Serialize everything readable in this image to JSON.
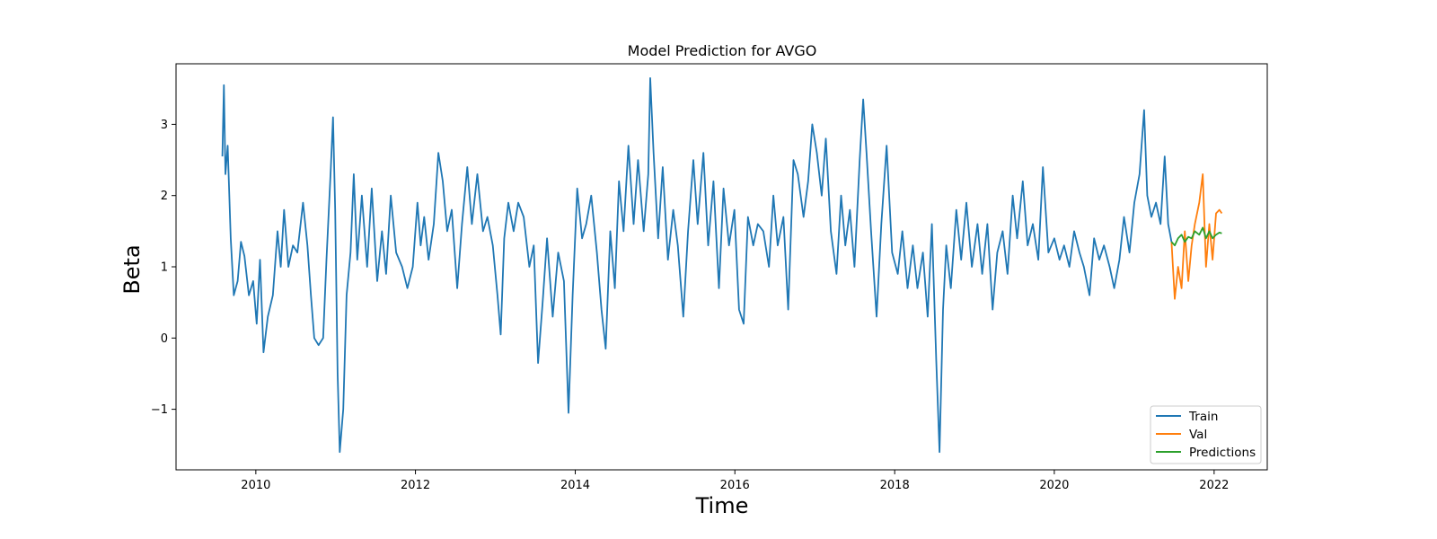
{
  "chart_data": {
    "type": "line",
    "title": "Model Prediction for AVGO",
    "xlabel": "Time",
    "ylabel": "Beta",
    "xlim": [
      "2009-01-01",
      "2022-09-01"
    ],
    "ylim": [
      -1.85,
      3.85
    ],
    "x_ticks": [
      "2010",
      "2012",
      "2014",
      "2016",
      "2018",
      "2020",
      "2022"
    ],
    "y_ticks": [
      "−1",
      "0",
      "1",
      "2",
      "3"
    ],
    "y_tick_values": [
      -1,
      0,
      1,
      2,
      3
    ],
    "grid": false,
    "legend_position": "bottom-right",
    "series": [
      {
        "name": "Train",
        "color": "#1f77b4",
        "points": [
          [
            "2009-08-01",
            2.55
          ],
          [
            "2009-08-08",
            3.55
          ],
          [
            "2009-08-15",
            2.3
          ],
          [
            "2009-08-25",
            2.7
          ],
          [
            "2009-09-08",
            1.4
          ],
          [
            "2009-09-22",
            0.6
          ],
          [
            "2009-10-10",
            0.8
          ],
          [
            "2009-10-25",
            1.35
          ],
          [
            "2009-11-10",
            1.15
          ],
          [
            "2009-11-30",
            0.6
          ],
          [
            "2009-12-20",
            0.8
          ],
          [
            "2010-01-05",
            0.2
          ],
          [
            "2010-01-20",
            1.1
          ],
          [
            "2010-02-05",
            -0.2
          ],
          [
            "2010-02-25",
            0.3
          ],
          [
            "2010-03-20",
            0.6
          ],
          [
            "2010-04-10",
            1.5
          ],
          [
            "2010-04-25",
            1.0
          ],
          [
            "2010-05-10",
            1.8
          ],
          [
            "2010-05-30",
            1.0
          ],
          [
            "2010-06-20",
            1.3
          ],
          [
            "2010-07-10",
            1.2
          ],
          [
            "2010-08-05",
            1.9
          ],
          [
            "2010-08-25",
            1.3
          ],
          [
            "2010-09-10",
            0.6
          ],
          [
            "2010-09-25",
            0.0
          ],
          [
            "2010-10-15",
            -0.1
          ],
          [
            "2010-11-05",
            0.0
          ],
          [
            "2010-11-20",
            1.1
          ],
          [
            "2010-12-10",
            2.4
          ],
          [
            "2010-12-20",
            3.1
          ],
          [
            "2010-12-30",
            1.8
          ],
          [
            "2011-01-10",
            -0.5
          ],
          [
            "2011-01-20",
            -1.6
          ],
          [
            "2011-02-05",
            -1.0
          ],
          [
            "2011-02-20",
            0.6
          ],
          [
            "2011-03-10",
            1.2
          ],
          [
            "2011-03-25",
            2.3
          ],
          [
            "2011-04-10",
            1.1
          ],
          [
            "2011-05-01",
            2.0
          ],
          [
            "2011-05-25",
            1.0
          ],
          [
            "2011-06-15",
            2.1
          ],
          [
            "2011-07-10",
            0.8
          ],
          [
            "2011-08-01",
            1.5
          ],
          [
            "2011-08-20",
            0.9
          ],
          [
            "2011-09-10",
            2.0
          ],
          [
            "2011-10-05",
            1.2
          ],
          [
            "2011-11-01",
            1.0
          ],
          [
            "2011-11-25",
            0.7
          ],
          [
            "2011-12-20",
            1.0
          ],
          [
            "2012-01-10",
            1.9
          ],
          [
            "2012-01-25",
            1.3
          ],
          [
            "2012-02-10",
            1.7
          ],
          [
            "2012-03-01",
            1.1
          ],
          [
            "2012-03-25",
            1.6
          ],
          [
            "2012-04-15",
            2.6
          ],
          [
            "2012-05-05",
            2.2
          ],
          [
            "2012-05-25",
            1.5
          ],
          [
            "2012-06-15",
            1.8
          ],
          [
            "2012-07-10",
            0.7
          ],
          [
            "2012-08-01",
            1.6
          ],
          [
            "2012-08-25",
            2.4
          ],
          [
            "2012-09-15",
            1.6
          ],
          [
            "2012-10-10",
            2.3
          ],
          [
            "2012-11-05",
            1.5
          ],
          [
            "2012-11-25",
            1.7
          ],
          [
            "2012-12-20",
            1.3
          ],
          [
            "2013-01-10",
            0.6
          ],
          [
            "2013-01-25",
            0.05
          ],
          [
            "2013-02-10",
            1.4
          ],
          [
            "2013-03-01",
            1.9
          ],
          [
            "2013-03-25",
            1.5
          ],
          [
            "2013-04-15",
            1.9
          ],
          [
            "2013-05-10",
            1.7
          ],
          [
            "2013-06-05",
            1.0
          ],
          [
            "2013-06-25",
            1.3
          ],
          [
            "2013-07-15",
            -0.35
          ],
          [
            "2013-08-05",
            0.5
          ],
          [
            "2013-08-25",
            1.4
          ],
          [
            "2013-09-20",
            0.3
          ],
          [
            "2013-10-15",
            1.2
          ],
          [
            "2013-11-10",
            0.8
          ],
          [
            "2013-12-01",
            -1.05
          ],
          [
            "2013-12-20",
            0.6
          ],
          [
            "2014-01-10",
            2.1
          ],
          [
            "2014-02-01",
            1.4
          ],
          [
            "2014-02-20",
            1.6
          ],
          [
            "2014-03-15",
            2.0
          ],
          [
            "2014-04-10",
            1.2
          ],
          [
            "2014-05-01",
            0.4
          ],
          [
            "2014-05-20",
            -0.15
          ],
          [
            "2014-06-10",
            1.5
          ],
          [
            "2014-07-01",
            0.7
          ],
          [
            "2014-07-20",
            2.2
          ],
          [
            "2014-08-10",
            1.5
          ],
          [
            "2014-09-01",
            2.7
          ],
          [
            "2014-09-25",
            1.6
          ],
          [
            "2014-10-15",
            2.5
          ],
          [
            "2014-11-10",
            1.5
          ],
          [
            "2014-12-01",
            2.3
          ],
          [
            "2014-12-10",
            3.65
          ],
          [
            "2014-12-25",
            2.6
          ],
          [
            "2015-01-15",
            1.4
          ],
          [
            "2015-02-05",
            2.4
          ],
          [
            "2015-03-01",
            1.1
          ],
          [
            "2015-03-25",
            1.8
          ],
          [
            "2015-04-15",
            1.3
          ],
          [
            "2015-05-10",
            0.3
          ],
          [
            "2015-06-01",
            1.5
          ],
          [
            "2015-06-25",
            2.5
          ],
          [
            "2015-07-15",
            1.6
          ],
          [
            "2015-08-10",
            2.6
          ],
          [
            "2015-09-01",
            1.3
          ],
          [
            "2015-09-25",
            2.2
          ],
          [
            "2015-10-20",
            0.7
          ],
          [
            "2015-11-10",
            2.1
          ],
          [
            "2015-12-05",
            1.3
          ],
          [
            "2015-12-30",
            1.8
          ],
          [
            "2016-01-20",
            0.4
          ],
          [
            "2016-02-10",
            0.2
          ],
          [
            "2016-03-01",
            1.7
          ],
          [
            "2016-03-25",
            1.3
          ],
          [
            "2016-04-15",
            1.6
          ],
          [
            "2016-05-10",
            1.5
          ],
          [
            "2016-06-05",
            1.0
          ],
          [
            "2016-06-25",
            2.0
          ],
          [
            "2016-07-15",
            1.3
          ],
          [
            "2016-08-10",
            1.7
          ],
          [
            "2016-09-01",
            0.4
          ],
          [
            "2016-09-25",
            2.5
          ],
          [
            "2016-10-15",
            2.3
          ],
          [
            "2016-11-10",
            1.7
          ],
          [
            "2016-12-01",
            2.2
          ],
          [
            "2016-12-20",
            3.0
          ],
          [
            "2017-01-10",
            2.6
          ],
          [
            "2017-02-01",
            2.0
          ],
          [
            "2017-02-20",
            2.8
          ],
          [
            "2017-03-15",
            1.5
          ],
          [
            "2017-04-10",
            0.9
          ],
          [
            "2017-05-01",
            2.0
          ],
          [
            "2017-05-20",
            1.3
          ],
          [
            "2017-06-10",
            1.8
          ],
          [
            "2017-07-01",
            1.0
          ],
          [
            "2017-07-25",
            2.5
          ],
          [
            "2017-08-10",
            3.35
          ],
          [
            "2017-08-25",
            2.6
          ],
          [
            "2017-09-15",
            1.5
          ],
          [
            "2017-10-10",
            0.3
          ],
          [
            "2017-11-01",
            1.6
          ],
          [
            "2017-11-25",
            2.7
          ],
          [
            "2017-12-20",
            1.2
          ],
          [
            "2018-01-15",
            0.9
          ],
          [
            "2018-02-05",
            1.5
          ],
          [
            "2018-03-01",
            0.7
          ],
          [
            "2018-03-25",
            1.3
          ],
          [
            "2018-04-15",
            0.7
          ],
          [
            "2018-05-10",
            1.2
          ],
          [
            "2018-06-01",
            0.3
          ],
          [
            "2018-06-20",
            1.6
          ],
          [
            "2018-07-10",
            -0.3
          ],
          [
            "2018-07-25",
            -1.6
          ],
          [
            "2018-08-10",
            0.4
          ],
          [
            "2018-08-25",
            1.3
          ],
          [
            "2018-09-15",
            0.7
          ],
          [
            "2018-10-10",
            1.8
          ],
          [
            "2018-11-01",
            1.1
          ],
          [
            "2018-11-25",
            1.9
          ],
          [
            "2018-12-20",
            1.0
          ],
          [
            "2019-01-15",
            1.6
          ],
          [
            "2019-02-05",
            0.9
          ],
          [
            "2019-03-01",
            1.6
          ],
          [
            "2019-03-25",
            0.4
          ],
          [
            "2019-04-15",
            1.2
          ],
          [
            "2019-05-10",
            1.5
          ],
          [
            "2019-06-01",
            0.9
          ],
          [
            "2019-06-25",
            2.0
          ],
          [
            "2019-07-15",
            1.4
          ],
          [
            "2019-08-10",
            2.2
          ],
          [
            "2019-09-01",
            1.3
          ],
          [
            "2019-09-25",
            1.6
          ],
          [
            "2019-10-20",
            1.1
          ],
          [
            "2019-11-10",
            2.4
          ],
          [
            "2019-12-05",
            1.2
          ],
          [
            "2020-01-01",
            1.4
          ],
          [
            "2020-01-25",
            1.1
          ],
          [
            "2020-02-15",
            1.3
          ],
          [
            "2020-03-10",
            1.0
          ],
          [
            "2020-04-01",
            1.5
          ],
          [
            "2020-04-25",
            1.2
          ],
          [
            "2020-05-15",
            1.0
          ],
          [
            "2020-06-10",
            0.6
          ],
          [
            "2020-07-01",
            1.4
          ],
          [
            "2020-07-25",
            1.1
          ],
          [
            "2020-08-15",
            1.3
          ],
          [
            "2020-09-10",
            1.0
          ],
          [
            "2020-10-01",
            0.7
          ],
          [
            "2020-10-25",
            1.1
          ],
          [
            "2020-11-15",
            1.7
          ],
          [
            "2020-12-10",
            1.2
          ],
          [
            "2021-01-01",
            1.9
          ],
          [
            "2021-01-25",
            2.3
          ],
          [
            "2021-02-15",
            3.2
          ],
          [
            "2021-03-01",
            2.0
          ],
          [
            "2021-03-20",
            1.7
          ],
          [
            "2021-04-10",
            1.9
          ],
          [
            "2021-05-01",
            1.6
          ],
          [
            "2021-05-20",
            2.55
          ],
          [
            "2021-06-05",
            1.6
          ],
          [
            "2021-06-20",
            1.35
          ]
        ]
      },
      {
        "name": "Val",
        "color": "#ff7f0e",
        "points": [
          [
            "2021-06-20",
            1.35
          ],
          [
            "2021-07-05",
            0.55
          ],
          [
            "2021-07-20",
            1.0
          ],
          [
            "2021-08-05",
            0.7
          ],
          [
            "2021-08-20",
            1.5
          ],
          [
            "2021-09-05",
            0.8
          ],
          [
            "2021-09-20",
            1.3
          ],
          [
            "2021-10-05",
            1.6
          ],
          [
            "2021-10-25",
            1.9
          ],
          [
            "2021-11-10",
            2.3
          ],
          [
            "2021-11-25",
            1.0
          ],
          [
            "2021-12-10",
            1.6
          ],
          [
            "2021-12-25",
            1.1
          ],
          [
            "2022-01-10",
            1.75
          ],
          [
            "2022-01-25",
            1.8
          ],
          [
            "2022-02-05",
            1.75
          ]
        ]
      },
      {
        "name": "Predictions",
        "color": "#2ca02c",
        "points": [
          [
            "2021-06-20",
            1.35
          ],
          [
            "2021-07-05",
            1.3
          ],
          [
            "2021-07-20",
            1.4
          ],
          [
            "2021-08-05",
            1.45
          ],
          [
            "2021-08-20",
            1.35
          ],
          [
            "2021-09-05",
            1.42
          ],
          [
            "2021-09-20",
            1.4
          ],
          [
            "2021-10-05",
            1.5
          ],
          [
            "2021-10-25",
            1.45
          ],
          [
            "2021-11-10",
            1.55
          ],
          [
            "2021-11-25",
            1.4
          ],
          [
            "2021-12-10",
            1.5
          ],
          [
            "2021-12-25",
            1.4
          ],
          [
            "2022-01-10",
            1.45
          ],
          [
            "2022-01-25",
            1.48
          ],
          [
            "2022-02-05",
            1.47
          ]
        ]
      }
    ]
  }
}
